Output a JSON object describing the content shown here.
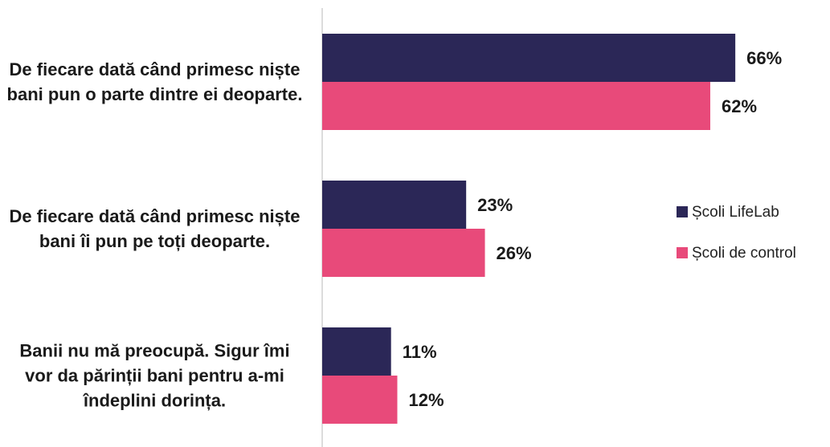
{
  "chart_data": {
    "type": "barh",
    "categories": [
      "De fiecare dată când primesc niște bani pun o parte dintre ei deoparte.",
      "De fiecare dată când primesc niște bani îi pun pe toți deoparte.",
      "Banii nu mă preocupă. Sigur îmi vor da părinții bani pentru a-mi îndeplini dorința."
    ],
    "series": [
      {
        "name": "Școli LifeLab",
        "color": "#2b2757",
        "values": [
          66,
          23,
          11
        ],
        "value_labels": [
          "66%",
          "23%",
          "11%"
        ]
      },
      {
        "name": "Școli de control",
        "color": "#e84a7a",
        "values": [
          62,
          26,
          12
        ],
        "value_labels": [
          "62%",
          "26%",
          "12%"
        ]
      }
    ],
    "legend": "right"
  }
}
